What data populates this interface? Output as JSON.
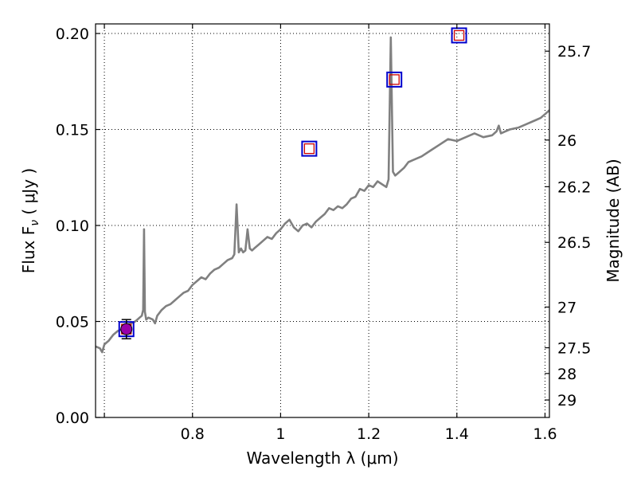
{
  "chart_data": {
    "type": "line",
    "xlabel": "Wavelength  λ (μm)",
    "ylabel": "Flux  F",
    "ylabel_sub": "ν",
    "ylabel_unit": " ( μJy )",
    "ylabel_right": "Magnitude (AB)",
    "xlim": [
      0.58,
      1.61
    ],
    "ylim": [
      0.0,
      0.205
    ],
    "grid": true,
    "xticks": [
      {
        "value": 0.6,
        "label": ""
      },
      {
        "value": 0.8,
        "label": "0.8"
      },
      {
        "value": 1.0,
        "label": "1"
      },
      {
        "value": 1.2,
        "label": "1.2"
      },
      {
        "value": 1.4,
        "label": "1.4"
      },
      {
        "value": 1.6,
        "label": "1.6"
      }
    ],
    "yticks": [
      {
        "value": 0.0,
        "label": "0.00"
      },
      {
        "value": 0.05,
        "label": "0.05"
      },
      {
        "value": 0.1,
        "label": "0.10"
      },
      {
        "value": 0.15,
        "label": "0.15"
      },
      {
        "value": 0.2,
        "label": "0.20"
      }
    ],
    "right_ticks": [
      {
        "label": "25.7",
        "flux": 0.1908
      },
      {
        "label": "26",
        "flux": 0.1445
      },
      {
        "label": "26.2",
        "flux": 0.1202
      },
      {
        "label": "26.5",
        "flux": 0.0912
      },
      {
        "label": "27",
        "flux": 0.0575
      },
      {
        "label": "27.5",
        "flux": 0.0363
      },
      {
        "label": "28",
        "flux": 0.0229
      },
      {
        "label": "29",
        "flux": 0.0091
      }
    ],
    "series": [
      {
        "type": "line",
        "color": "#808080",
        "x": [
          0.58,
          0.59,
          0.595,
          0.6,
          0.605,
          0.61,
          0.62,
          0.63,
          0.64,
          0.65,
          0.66,
          0.67,
          0.675,
          0.68,
          0.685,
          0.688,
          0.69,
          0.692,
          0.695,
          0.7,
          0.71,
          0.715,
          0.72,
          0.73,
          0.74,
          0.75,
          0.76,
          0.77,
          0.78,
          0.79,
          0.8,
          0.81,
          0.82,
          0.83,
          0.84,
          0.85,
          0.86,
          0.87,
          0.88,
          0.89,
          0.895,
          0.9,
          0.905,
          0.91,
          0.915,
          0.92,
          0.925,
          0.93,
          0.935,
          0.94,
          0.95,
          0.96,
          0.97,
          0.98,
          0.99,
          1.0,
          1.01,
          1.02,
          1.03,
          1.04,
          1.05,
          1.06,
          1.07,
          1.08,
          1.09,
          1.1,
          1.11,
          1.12,
          1.13,
          1.14,
          1.15,
          1.16,
          1.17,
          1.18,
          1.19,
          1.2,
          1.21,
          1.22,
          1.24,
          1.245,
          1.25,
          1.255,
          1.26,
          1.265,
          1.27,
          1.28,
          1.29,
          1.3,
          1.32,
          1.34,
          1.36,
          1.38,
          1.4,
          1.42,
          1.44,
          1.46,
          1.48,
          1.49,
          1.495,
          1.5,
          1.52,
          1.54,
          1.56,
          1.58,
          1.59,
          1.6,
          1.61
        ],
        "y": [
          0.037,
          0.036,
          0.034,
          0.038,
          0.039,
          0.04,
          0.043,
          0.045,
          0.046,
          0.048,
          0.049,
          0.05,
          0.051,
          0.052,
          0.053,
          0.056,
          0.098,
          0.055,
          0.051,
          0.052,
          0.051,
          0.049,
          0.053,
          0.056,
          0.058,
          0.059,
          0.061,
          0.063,
          0.065,
          0.066,
          0.069,
          0.071,
          0.073,
          0.072,
          0.075,
          0.077,
          0.078,
          0.08,
          0.082,
          0.083,
          0.085,
          0.111,
          0.086,
          0.088,
          0.086,
          0.087,
          0.098,
          0.088,
          0.087,
          0.088,
          0.09,
          0.092,
          0.094,
          0.093,
          0.096,
          0.098,
          0.101,
          0.103,
          0.099,
          0.097,
          0.1,
          0.101,
          0.099,
          0.102,
          0.104,
          0.106,
          0.109,
          0.108,
          0.11,
          0.109,
          0.111,
          0.114,
          0.115,
          0.119,
          0.118,
          0.121,
          0.12,
          0.123,
          0.12,
          0.124,
          0.198,
          0.128,
          0.126,
          0.127,
          0.128,
          0.13,
          0.133,
          0.134,
          0.136,
          0.139,
          0.142,
          0.145,
          0.144,
          0.146,
          0.148,
          0.146,
          0.147,
          0.149,
          0.152,
          0.148,
          0.15,
          0.151,
          0.153,
          0.155,
          0.156,
          0.158,
          0.16
        ]
      },
      {
        "type": "square-marker",
        "edge_color": "#0000cc",
        "x": [
          0.65,
          1.065,
          1.258,
          1.405
        ],
        "y": [
          0.046,
          0.14,
          0.176,
          0.199
        ]
      },
      {
        "type": "square-marker",
        "edge_color": "#cc0000",
        "x": [
          0.65,
          1.065,
          1.258,
          1.405
        ],
        "y": [
          0.046,
          0.14,
          0.176,
          0.199
        ]
      },
      {
        "type": "errorbar-point",
        "color": "#9900aa",
        "x": [
          0.65
        ],
        "y": [
          0.046
        ],
        "yerr": [
          0.005
        ]
      }
    ]
  }
}
